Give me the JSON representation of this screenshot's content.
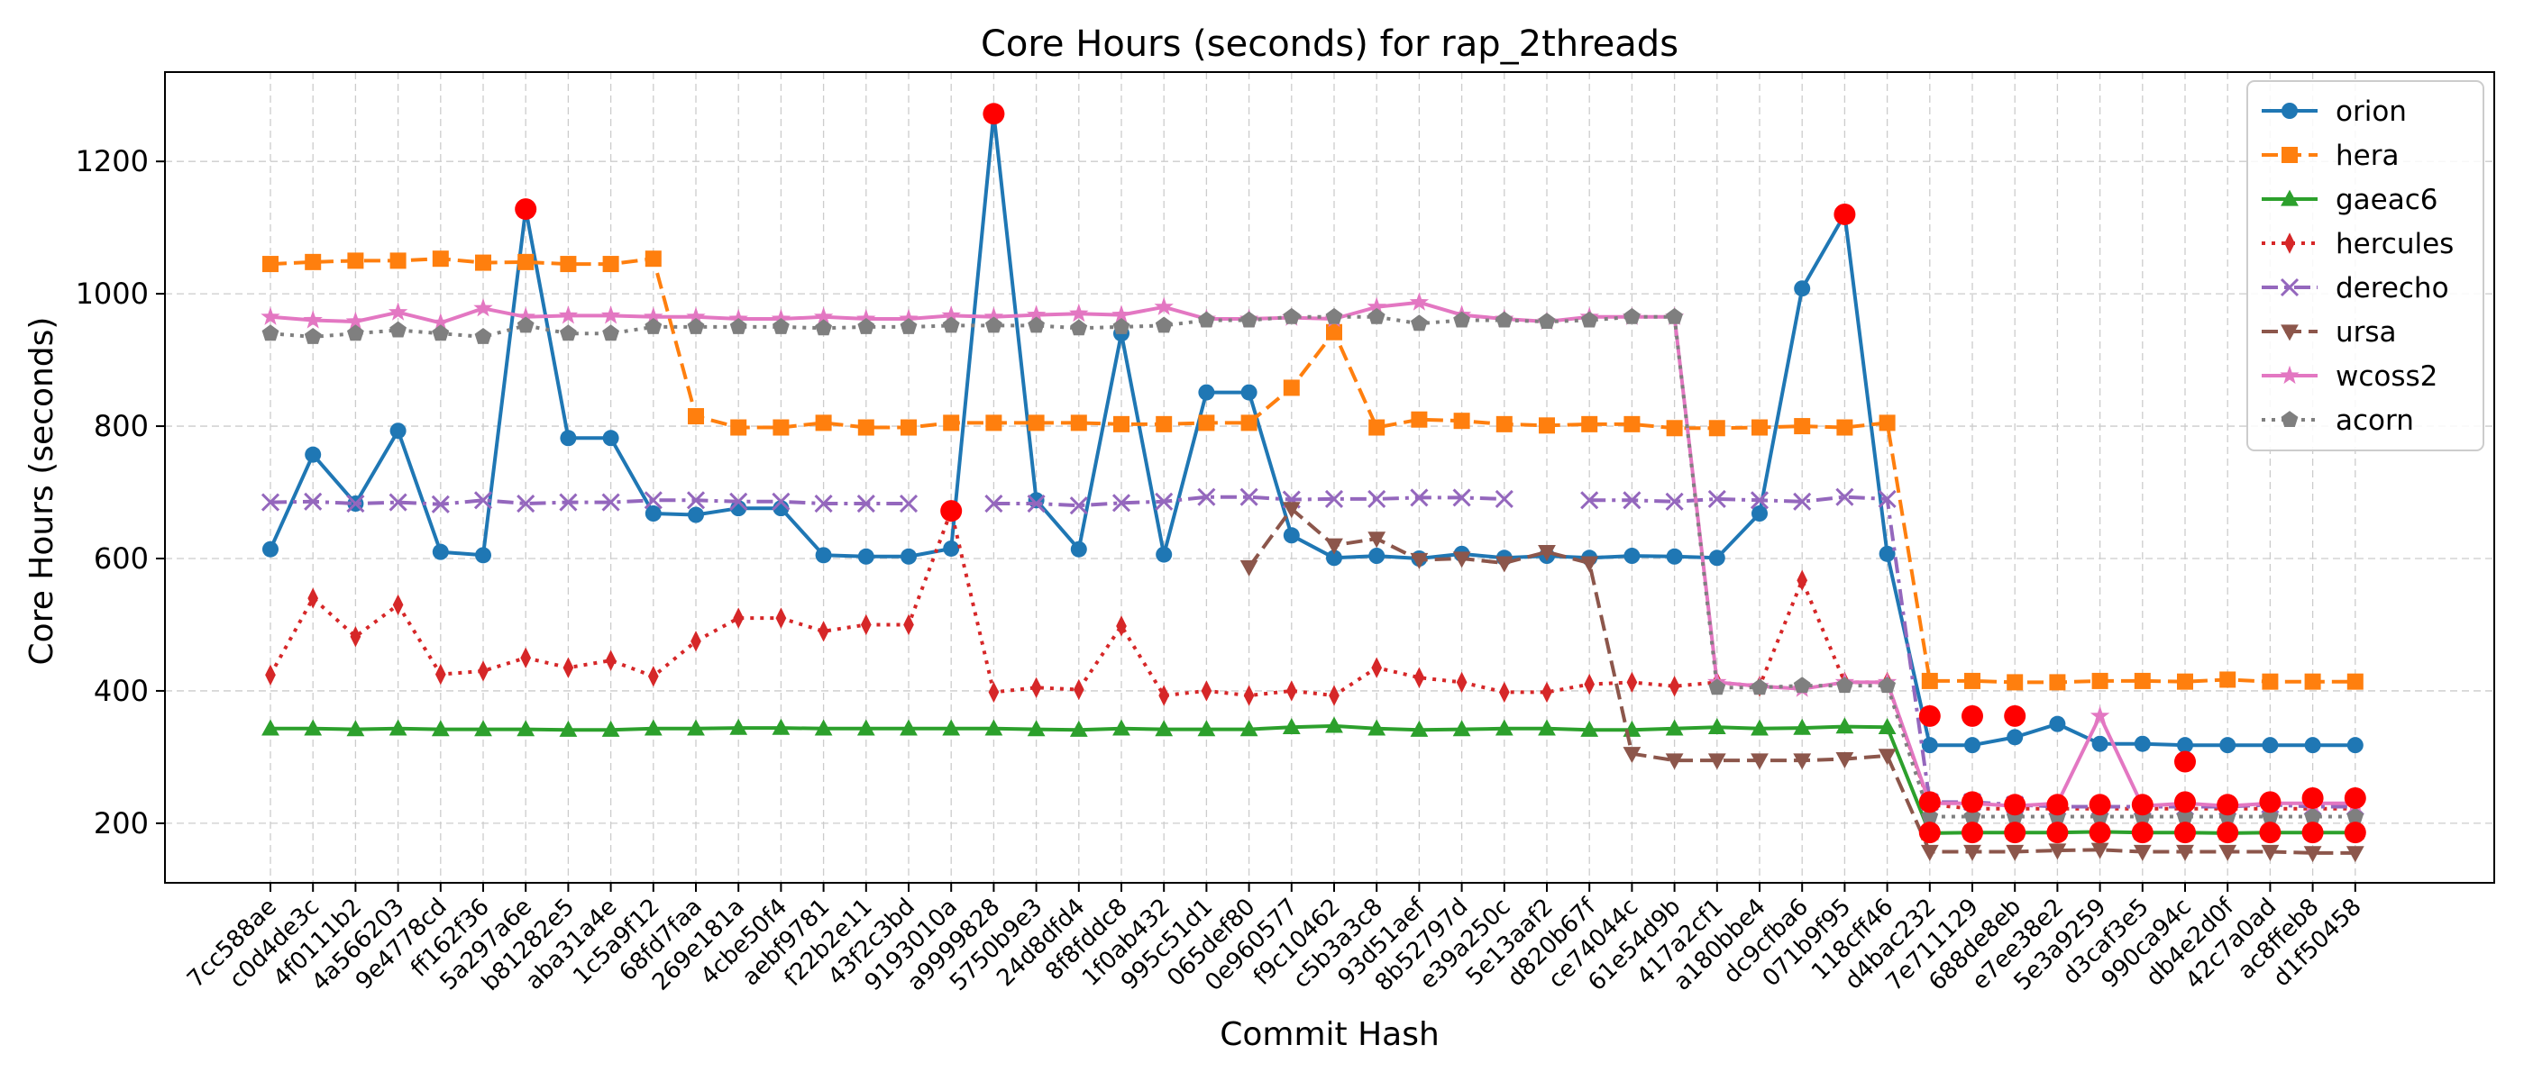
{
  "chart_data": {
    "type": "line",
    "title": "Core Hours (seconds) for rap_2threads",
    "xlabel": "Commit Hash",
    "ylabel": "Core Hours (seconds)",
    "ylim": [
      110,
      1335
    ],
    "yticks": [
      200,
      400,
      600,
      800,
      1000,
      1200
    ],
    "grid": true,
    "legend_position": "top-right",
    "categories": [
      "7cc588ae",
      "c0d4de3c",
      "4f0111b2",
      "4a566203",
      "9e4778cd",
      "ff162f36",
      "5a297a6e",
      "b81282e5",
      "aba31a4e",
      "1c5a9f12",
      "68fd7faa",
      "269e181a",
      "4cbe50f4",
      "aebf9781",
      "f22b2e11",
      "43f2c3bd",
      "9193010a",
      "a9999828",
      "5750b9e3",
      "24d8dfd4",
      "8f8fddc8",
      "1f0ab432",
      "995c51d1",
      "065def80",
      "0e960577",
      "f9c10462",
      "c5b3a3c8",
      "93d51aef",
      "8b52797d",
      "e39a250c",
      "5e13aaf2",
      "d820b67f",
      "ce74044c",
      "61e54d9b",
      "417a2cf1",
      "a180bbe4",
      "dc9cfba6",
      "071b9f95",
      "118cff46",
      "d4bac232",
      "7e711129",
      "688de8eb",
      "e7ee38e2",
      "5e3a9259",
      "d3caf3e5",
      "990ca94c",
      "db4e2d0f",
      "42c7a0ad",
      "ac8ffeb8",
      "d1f50458"
    ],
    "series": [
      {
        "name": "orion",
        "color": "#1f77b4",
        "marker": "circle",
        "dash": "solid",
        "values": [
          614,
          757,
          683,
          793,
          610,
          605,
          1128,
          782,
          782,
          668,
          666,
          676,
          676,
          605,
          603,
          603,
          615,
          1272,
          688,
          614,
          940,
          606,
          851,
          851,
          635,
          601,
          604,
          600,
          607,
          601,
          604,
          601,
          604,
          603,
          601,
          668,
          1008,
          1120,
          607,
          318,
          318,
          330,
          350,
          320,
          320,
          318,
          318,
          318,
          318,
          318
        ]
      },
      {
        "name": "hera",
        "color": "#ff7f0e",
        "marker": "square",
        "dash": "dashed",
        "values": [
          1045,
          1048,
          1050,
          1050,
          1053,
          1047,
          1048,
          1045,
          1045,
          1053,
          815,
          798,
          798,
          805,
          798,
          798,
          805,
          805,
          805,
          805,
          803,
          803,
          805,
          805,
          858,
          942,
          798,
          810,
          808,
          803,
          801,
          803,
          803,
          797,
          797,
          798,
          800,
          798,
          805,
          415,
          415,
          413,
          413,
          415,
          415,
          414,
          417,
          414,
          414,
          414
        ]
      },
      {
        "name": "gaeac6",
        "color": "#2ca02c",
        "marker": "triangle-up",
        "dash": "solid",
        "values": [
          343,
          343,
          342,
          343,
          342,
          342,
          342,
          341,
          341,
          343,
          343,
          344,
          344,
          343,
          343,
          343,
          343,
          343,
          342,
          341,
          343,
          342,
          342,
          342,
          345,
          347,
          343,
          341,
          342,
          343,
          343,
          341,
          341,
          343,
          345,
          343,
          344,
          346,
          345,
          185,
          186,
          186,
          186,
          187,
          186,
          186,
          185,
          186,
          186,
          186
        ]
      },
      {
        "name": "hercules",
        "color": "#d62728",
        "marker": "thin-diamond",
        "dash": "dotted",
        "values": [
          424,
          540,
          482,
          530,
          425,
          430,
          450,
          435,
          446,
          422,
          475,
          510,
          510,
          490,
          500,
          500,
          672,
          398,
          405,
          402,
          498,
          393,
          400,
          393,
          400,
          393,
          435,
          420,
          413,
          398,
          398,
          410,
          413,
          407,
          413,
          407,
          567,
          413,
          413,
          228,
          222,
          222,
          222,
          222,
          222,
          222,
          222,
          222,
          222,
          222
        ]
      },
      {
        "name": "derecho",
        "color": "#9467bd",
        "marker": "x",
        "dash": "dashdot",
        "values": [
          685,
          686,
          683,
          685,
          682,
          688,
          683,
          685,
          685,
          688,
          688,
          686,
          686,
          683,
          683,
          683,
          null,
          683,
          683,
          680,
          684,
          686,
          693,
          693,
          689,
          690,
          690,
          692,
          692,
          690,
          null,
          688,
          688,
          686,
          690,
          688,
          686,
          693,
          690,
          232,
          232,
          228,
          225,
          225,
          225,
          225,
          225,
          228,
          225,
          225
        ]
      },
      {
        "name": "ursa",
        "color": "#8c564b",
        "marker": "triangle-down",
        "dash": "dashed",
        "values": [
          null,
          null,
          null,
          null,
          null,
          null,
          null,
          null,
          null,
          null,
          null,
          null,
          null,
          null,
          null,
          null,
          null,
          null,
          null,
          null,
          null,
          null,
          null,
          587,
          675,
          620,
          630,
          598,
          600,
          593,
          610,
          593,
          305,
          295,
          295,
          295,
          295,
          297,
          302,
          157,
          157,
          157,
          159,
          160,
          157,
          157,
          157,
          157,
          155,
          155
        ]
      },
      {
        "name": "wcoss2",
        "color": "#e377c2",
        "marker": "star",
        "dash": "solid",
        "values": [
          965,
          960,
          958,
          972,
          956,
          978,
          965,
          967,
          967,
          965,
          965,
          962,
          962,
          965,
          962,
          962,
          967,
          965,
          968,
          970,
          968,
          980,
          962,
          962,
          964,
          962,
          980,
          987,
          968,
          962,
          958,
          965,
          965,
          965,
          413,
          407,
          403,
          413,
          413,
          230,
          230,
          226,
          230,
          362,
          226,
          230,
          226,
          230,
          230,
          230
        ]
      },
      {
        "name": "acorn",
        "color": "#7f7f7f",
        "marker": "pentagon",
        "dash": "dotted",
        "values": [
          940,
          935,
          940,
          945,
          940,
          935,
          952,
          940,
          940,
          950,
          950,
          950,
          950,
          948,
          950,
          950,
          952,
          952,
          952,
          948,
          950,
          952,
          960,
          960,
          965,
          965,
          965,
          955,
          960,
          960,
          958,
          960,
          965,
          965,
          405,
          405,
          408,
          408,
          408,
          210,
          210,
          210,
          210,
          210,
          210,
          210,
          210,
          210,
          210,
          210
        ]
      }
    ],
    "highlight_points": [
      {
        "category": "5a297a6e",
        "value": 1128
      },
      {
        "category": "9193010a",
        "value": 672
      },
      {
        "category": "a9999828",
        "value": 1272
      },
      {
        "category": "071b9f95",
        "value": 1120
      },
      {
        "category": "d4bac232",
        "value": 362
      },
      {
        "category": "7e711129",
        "value": 362
      },
      {
        "category": "688de8eb",
        "value": 362
      },
      {
        "category": "d4bac232",
        "value": 232
      },
      {
        "category": "7e711129",
        "value": 232
      },
      {
        "category": "688de8eb",
        "value": 228
      },
      {
        "category": "e7ee38e2",
        "value": 228
      },
      {
        "category": "5e3a9259",
        "value": 228
      },
      {
        "category": "d3caf3e5",
        "value": 228
      },
      {
        "category": "990ca94c",
        "value": 232
      },
      {
        "category": "db4e2d0f",
        "value": 228
      },
      {
        "category": "42c7a0ad",
        "value": 232
      },
      {
        "category": "ac8ffeb8",
        "value": 238
      },
      {
        "category": "d1f50458",
        "value": 238
      },
      {
        "category": "990ca94c",
        "value": 293
      },
      {
        "category": "d4bac232",
        "value": 186
      },
      {
        "category": "7e711129",
        "value": 186
      },
      {
        "category": "688de8eb",
        "value": 186
      },
      {
        "category": "e7ee38e2",
        "value": 186
      },
      {
        "category": "5e3a9259",
        "value": 186
      },
      {
        "category": "d3caf3e5",
        "value": 186
      },
      {
        "category": "990ca94c",
        "value": 186
      },
      {
        "category": "db4e2d0f",
        "value": 186
      },
      {
        "category": "42c7a0ad",
        "value": 186
      },
      {
        "category": "ac8ffeb8",
        "value": 186
      },
      {
        "category": "d1f50458",
        "value": 186
      }
    ],
    "highlight_color": "#ff0000"
  }
}
